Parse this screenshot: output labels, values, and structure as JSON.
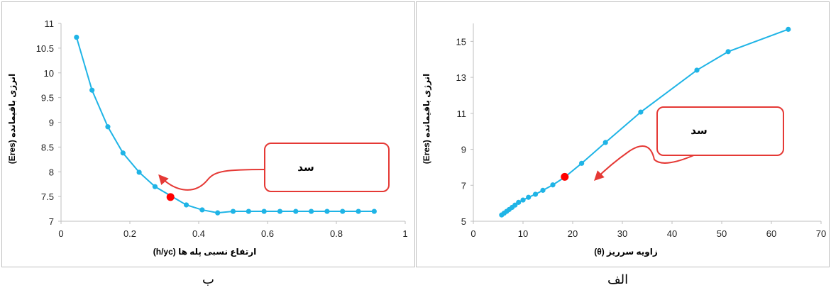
{
  "colors": {
    "series": "#1fb4e6",
    "highlight": "#ff0000",
    "callout": "#e53935",
    "axis": "#bfbfbf"
  },
  "chart_data": [
    {
      "id": "left",
      "type": "line",
      "caption": "ب",
      "xlabel": "ارتفاع نسبی پله ها (h/yc)",
      "ylabel": "انرژی باقیمانده (Eres)",
      "xlim": [
        0,
        1
      ],
      "ylim": [
        7,
        11
      ],
      "xticks": [
        0,
        0.2,
        0.4,
        0.6,
        0.8,
        1
      ],
      "xtick_labels": [
        "0",
        "0.2",
        "0.4",
        "0.6",
        "0.8",
        "1"
      ],
      "yticks": [
        7,
        7.5,
        8,
        8.5,
        9,
        9.5,
        10,
        10.5,
        11
      ],
      "ytick_labels": [
        "7",
        "7.5",
        "8",
        "8.5",
        "9",
        "9.5",
        "10",
        "10.5",
        "11"
      ],
      "grid": false,
      "series": [
        {
          "x": [
            0.045,
            0.09,
            0.136,
            0.18,
            0.227,
            0.273,
            0.364,
            0.41,
            0.455,
            0.5,
            0.545,
            0.59,
            0.636,
            0.682,
            0.727,
            0.773,
            0.818,
            0.864,
            0.91
          ],
          "y": [
            10.72,
            9.65,
            8.91,
            8.38,
            7.99,
            7.7,
            7.33,
            7.23,
            7.17,
            7.2,
            7.2,
            7.2,
            7.2,
            7.2,
            7.2,
            7.2,
            7.2,
            7.2,
            7.2
          ]
        }
      ],
      "highlight_point": {
        "x": 0.318,
        "y": 7.49
      },
      "annotation": {
        "text": "سد",
        "target_x": 0.25,
        "target_y": 7.95
      }
    },
    {
      "id": "right",
      "type": "line",
      "caption": "الف",
      "xlabel": "زاویه سرریز (θ)",
      "ylabel": "انرژی باقیمانده (Eres)",
      "xlim": [
        0,
        70
      ],
      "ylim": [
        5,
        16
      ],
      "xticks": [
        0,
        10,
        20,
        30,
        40,
        50,
        60,
        70
      ],
      "xtick_labels": [
        "0",
        "10",
        "20",
        "30",
        "40",
        "50",
        "60",
        "70"
      ],
      "yticks": [
        5,
        7,
        9,
        11,
        13,
        15
      ],
      "ytick_labels": [
        "5",
        "7",
        "9",
        "11",
        "13",
        "15"
      ],
      "grid": false,
      "series": [
        {
          "x": [
            5.7,
            6.2,
            6.7,
            7.2,
            7.8,
            8.4,
            9.1,
            10.0,
            11.1,
            12.5,
            14.0,
            16.0,
            18.4,
            21.8,
            26.6,
            33.7,
            45.0,
            51.3,
            63.4
          ],
          "y": [
            5.35,
            5.45,
            5.55,
            5.65,
            5.77,
            5.9,
            6.05,
            6.18,
            6.33,
            6.5,
            6.72,
            7.02,
            7.45,
            8.22,
            9.38,
            11.07,
            13.4,
            14.43,
            15.67
          ]
        }
      ],
      "highlight_point": {
        "x": 18.4,
        "y": 7.47
      },
      "annotation": {
        "text": "سد",
        "target_x": 22.5,
        "target_y": 6.9
      }
    }
  ]
}
